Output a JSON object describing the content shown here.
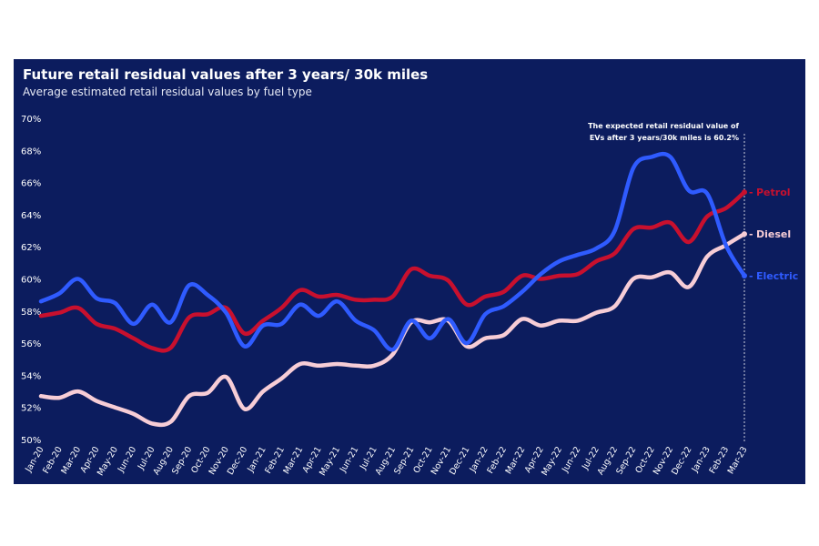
{
  "chart_data": {
    "type": "line",
    "title": "Future retail residual values after 3 years/ 30k miles",
    "subtitle": "Average estimated retail residual values by fuel type",
    "ylim": [
      50,
      70
    ],
    "yticks": [
      "50%",
      "52%",
      "54%",
      "56%",
      "58%",
      "60%",
      "62%",
      "64%",
      "66%",
      "68%",
      "70%"
    ],
    "categories": [
      "Jan-20",
      "Feb-20",
      "Mar-20",
      "Apr-20",
      "May-20",
      "Jun-20",
      "Jul-20",
      "Aug-20",
      "Sep-20",
      "Oct-20",
      "Nov-20",
      "Dec-20",
      "Jan-21",
      "Feb-21",
      "Mar-21",
      "Apr-21",
      "May-21",
      "Jun-21",
      "Jul-21",
      "Aug-21",
      "Sep-21",
      "Oct-21",
      "Nov-21",
      "Dec-21",
      "Jan-22",
      "Feb-22",
      "Mar-22",
      "Apr-22",
      "May-22",
      "Jun-22",
      "Jul-22",
      "Aug-22",
      "Sep-22",
      "Oct-22",
      "Nov-22",
      "Dec-22",
      "Jan-23",
      "Feb-23",
      "Mar-23"
    ],
    "series": [
      {
        "name": "Petrol",
        "color": "#c8102e",
        "values": [
          57.7,
          57.9,
          58.2,
          57.2,
          56.9,
          56.3,
          55.7,
          55.7,
          57.6,
          57.8,
          58.2,
          56.6,
          57.4,
          58.2,
          59.3,
          58.9,
          59.0,
          58.7,
          58.7,
          58.9,
          60.6,
          60.2,
          59.9,
          58.4,
          58.9,
          59.2,
          60.2,
          60.0,
          60.2,
          60.3,
          61.1,
          61.6,
          63.1,
          63.2,
          63.5,
          62.3,
          63.9,
          64.4,
          65.4
        ]
      },
      {
        "name": "Diesel",
        "color": "#f7cdd6",
        "values": [
          52.7,
          52.6,
          53.0,
          52.4,
          52.0,
          51.6,
          51.0,
          51.1,
          52.7,
          52.9,
          53.9,
          51.9,
          53.0,
          53.8,
          54.7,
          54.6,
          54.7,
          54.6,
          54.6,
          55.3,
          57.3,
          57.3,
          57.4,
          55.8,
          56.3,
          56.5,
          57.5,
          57.1,
          57.4,
          57.4,
          57.9,
          58.3,
          60.0,
          60.1,
          60.4,
          59.5,
          61.4,
          62.1,
          62.8
        ]
      },
      {
        "name": "Electric",
        "color": "#2f5bff",
        "values": [
          58.6,
          59.1,
          60.0,
          58.8,
          58.5,
          57.2,
          58.4,
          57.3,
          59.6,
          59.0,
          57.9,
          55.8,
          57.1,
          57.2,
          58.4,
          57.7,
          58.6,
          57.4,
          56.8,
          55.6,
          57.4,
          56.3,
          57.5,
          56.0,
          57.8,
          58.3,
          59.2,
          60.3,
          61.1,
          61.5,
          61.9,
          63.0,
          66.9,
          67.6,
          67.6,
          65.5,
          65.3,
          62.1,
          60.2
        ]
      }
    ],
    "annotation": [
      "The expected retail residual value of",
      "EVs after 3 years/30k miles is 60.2%"
    ]
  }
}
